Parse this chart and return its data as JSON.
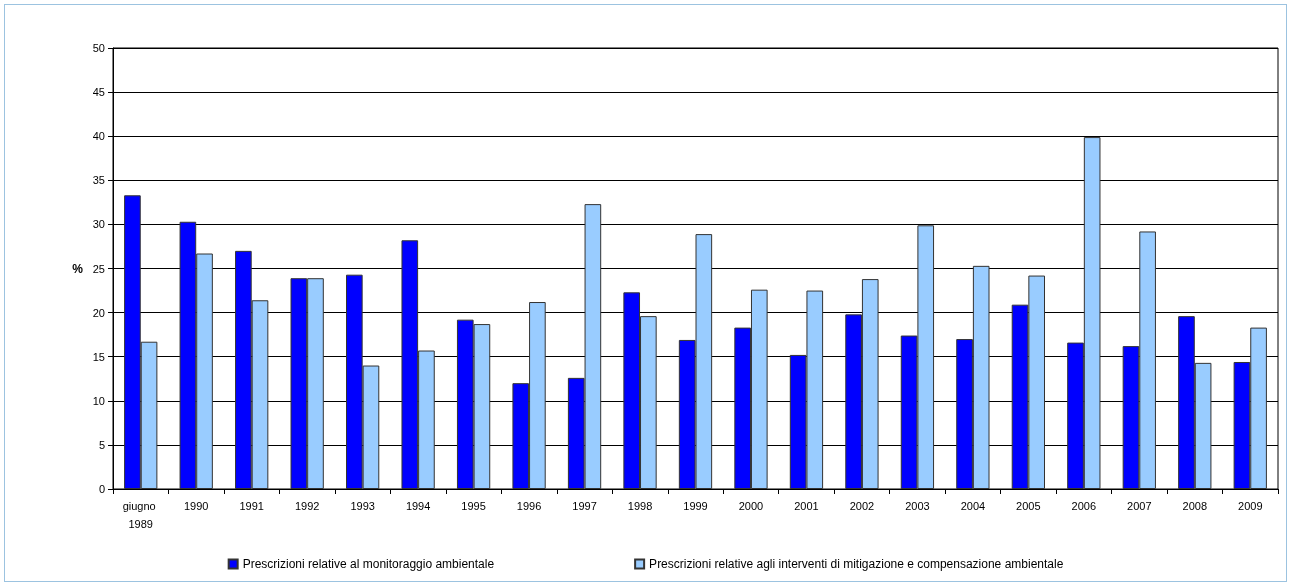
{
  "chart_data": {
    "type": "bar",
    "ylabel": "%",
    "categories": [
      "giugno 1989",
      "1990",
      "1991",
      "1992",
      "1993",
      "1994",
      "1995",
      "1996",
      "1997",
      "1998",
      "1999",
      "2000",
      "2001",
      "2002",
      "2003",
      "2004",
      "2005",
      "2006",
      "2007",
      "2008",
      "2009"
    ],
    "series": [
      {
        "name": "Prescrizioni relative al monitoraggio ambientale",
        "color": "#0000ff",
        "values": [
          33.3,
          30.3,
          27.0,
          23.9,
          24.3,
          28.2,
          19.2,
          12.0,
          12.6,
          22.3,
          16.9,
          18.3,
          15.2,
          19.8,
          17.4,
          17.0,
          20.9,
          16.6,
          16.2,
          19.6,
          14.4
        ]
      },
      {
        "name": "Prescrizioni relative agli interventi di mitigazione e compensazione ambientale",
        "color": "#99ccff",
        "values": [
          16.7,
          26.7,
          21.4,
          23.9,
          14.0,
          15.7,
          18.7,
          21.2,
          32.3,
          19.6,
          28.9,
          22.6,
          22.5,
          23.8,
          29.9,
          25.3,
          24.2,
          39.9,
          29.2,
          14.3,
          18.3
        ]
      }
    ],
    "ylim": [
      0,
      50
    ],
    "yticks": [
      0,
      5,
      10,
      15,
      20,
      25,
      30,
      35,
      40,
      45,
      50
    ],
    "grid": "y",
    "legend": "bottom"
  }
}
